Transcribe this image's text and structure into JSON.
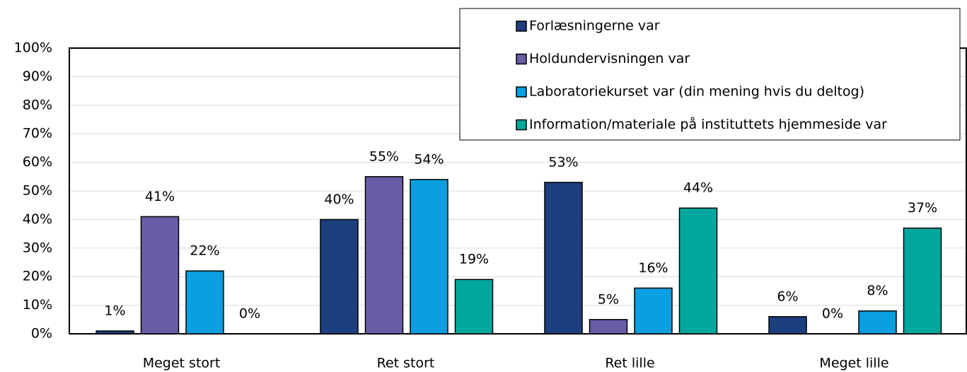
{
  "chart_data": {
    "type": "bar",
    "categories": [
      "Meget stort",
      "Ret stort",
      "Ret lille",
      "Meget lille"
    ],
    "series": [
      {
        "name": "Forlæsningerne var",
        "color": "#1c3f7e",
        "values": [
          1,
          40,
          53,
          6
        ],
        "value_labels": [
          "1%",
          "40%",
          "53%",
          "6%"
        ]
      },
      {
        "name": "Holdundervisningen var",
        "color": "#6a5ca6",
        "values": [
          41,
          55,
          5,
          0
        ],
        "value_labels": [
          "41%",
          "55%",
          "5%",
          "0%"
        ]
      },
      {
        "name": "Laboratoriekurset var (din mening hvis du deltog)",
        "color": "#0a9fe0",
        "values": [
          22,
          54,
          16,
          8
        ],
        "value_labels": [
          "22%",
          "54%",
          "16%",
          "8%"
        ]
      },
      {
        "name": "Information/materiale på instituttets hjemmeside var",
        "color": "#00a79c",
        "values": [
          0,
          19,
          44,
          37
        ],
        "value_labels": [
          "0%",
          "19%",
          "44%",
          "37%"
        ]
      }
    ],
    "ylim": [
      0,
      100
    ],
    "yticks": [
      {
        "value": 0,
        "label": "0%"
      },
      {
        "value": 10,
        "label": "10%"
      },
      {
        "value": 20,
        "label": "20%"
      },
      {
        "value": 30,
        "label": "30%"
      },
      {
        "value": 40,
        "label": "40%"
      },
      {
        "value": 50,
        "label": "50%"
      },
      {
        "value": 60,
        "label": "60%"
      },
      {
        "value": 70,
        "label": "70%"
      },
      {
        "value": 80,
        "label": "80%"
      },
      {
        "value": 90,
        "label": "90%"
      },
      {
        "value": 100,
        "label": "100%"
      }
    ],
    "grid": true,
    "legend": "top-right"
  }
}
